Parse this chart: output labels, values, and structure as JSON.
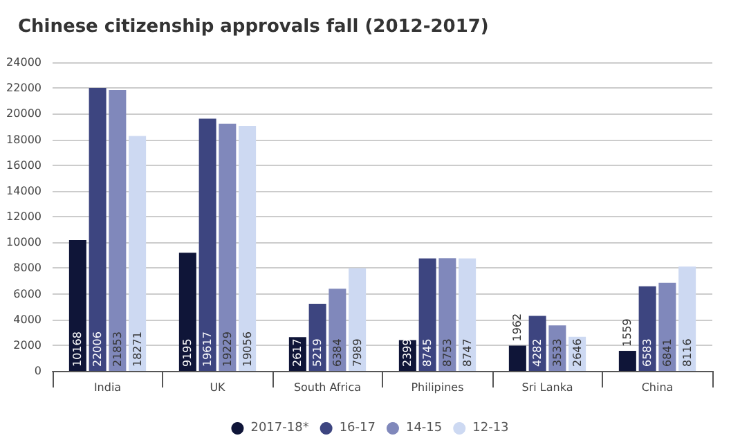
{
  "chart_data": {
    "type": "bar",
    "title": "Chinese citizenship approvals fall (2012-2017)",
    "categories": [
      "India",
      "UK",
      "South Africa",
      "Philipines",
      "Sri Lanka",
      "China"
    ],
    "series": [
      {
        "name": "2017-18*",
        "color": "#0f1538",
        "values": [
          10168,
          9195,
          2617,
          2399,
          1962,
          1559
        ]
      },
      {
        "name": "16-17",
        "color": "#3d4580",
        "values": [
          22006,
          19617,
          5219,
          8745,
          4282,
          6583
        ]
      },
      {
        "name": "14-15",
        "color": "#8088bb",
        "values": [
          21853,
          19229,
          6384,
          8753,
          3533,
          6841
        ]
      },
      {
        "name": "12-13",
        "color": "#cdd9f2",
        "values": [
          18271,
          19056,
          7989,
          8747,
          2646,
          8116
        ]
      }
    ],
    "ylim": [
      0,
      24000
    ],
    "yticks": [
      0,
      2000,
      4000,
      6000,
      8000,
      10000,
      12000,
      14000,
      16000,
      18000,
      20000,
      22000,
      24000
    ],
    "grid": "y",
    "legend": "bottom",
    "data_labels": true
  }
}
